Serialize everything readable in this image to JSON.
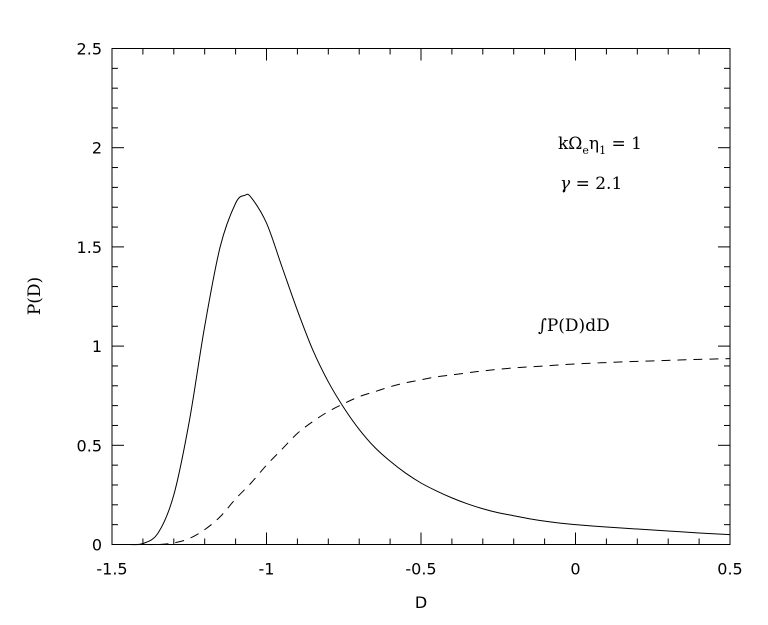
{
  "chart_data": {
    "type": "line",
    "xlabel": "D",
    "ylabel": "P(D)",
    "xlim": [
      -1.5,
      0.5
    ],
    "ylim": [
      0,
      2.5
    ],
    "x_ticks": [
      "-1.5",
      "-1",
      "-0.5",
      "0",
      "0.5"
    ],
    "y_ticks": [
      "0",
      "0.5",
      "1",
      "1.5",
      "2",
      "2.5"
    ],
    "grid": false,
    "annotations": {
      "param1": {
        "main": "kΩ",
        "sub_e": "e",
        "eta": "η",
        "sub_1": "1",
        "rest": " = 1"
      },
      "param2": {
        "gamma": "γ",
        "rest": " = 2.1"
      },
      "dashed_label": {
        "integral": "∫",
        "text": "P(D)dD"
      }
    },
    "series": [
      {
        "style": "solid",
        "x": [
          -1.45,
          -1.4,
          -1.35,
          -1.3,
          -1.25,
          -1.2,
          -1.15,
          -1.1,
          -1.07,
          -1.05,
          -1.0,
          -0.95,
          -0.9,
          -0.85,
          -0.8,
          -0.75,
          -0.7,
          -0.65,
          -0.6,
          -0.55,
          -0.5,
          -0.45,
          -0.4,
          -0.35,
          -0.3,
          -0.25,
          -0.2,
          -0.15,
          -0.1,
          -0.05,
          0.0,
          0.1,
          0.2,
          0.3,
          0.4,
          0.5
        ],
        "y": [
          0.0,
          0.005,
          0.06,
          0.25,
          0.62,
          1.1,
          1.5,
          1.72,
          1.76,
          1.75,
          1.62,
          1.4,
          1.18,
          0.98,
          0.82,
          0.69,
          0.58,
          0.49,
          0.42,
          0.36,
          0.31,
          0.27,
          0.235,
          0.205,
          0.18,
          0.16,
          0.145,
          0.13,
          0.118,
          0.108,
          0.1,
          0.088,
          0.078,
          0.068,
          0.058,
          0.05
        ]
      },
      {
        "style": "dashed",
        "x": [
          -1.45,
          -1.4,
          -1.35,
          -1.3,
          -1.25,
          -1.2,
          -1.15,
          -1.1,
          -1.05,
          -1.0,
          -0.95,
          -0.9,
          -0.85,
          -0.8,
          -0.75,
          -0.7,
          -0.65,
          -0.6,
          -0.55,
          -0.5,
          -0.45,
          -0.4,
          -0.35,
          -0.3,
          -0.2,
          -0.1,
          0.0,
          0.1,
          0.2,
          0.3,
          0.4,
          0.5
        ],
        "y": [
          0.0,
          0.0,
          0.0,
          0.008,
          0.03,
          0.075,
          0.14,
          0.23,
          0.31,
          0.4,
          0.48,
          0.56,
          0.62,
          0.67,
          0.71,
          0.745,
          0.77,
          0.795,
          0.815,
          0.83,
          0.845,
          0.855,
          0.865,
          0.875,
          0.89,
          0.9,
          0.91,
          0.917,
          0.923,
          0.928,
          0.933,
          0.937
        ]
      }
    ]
  }
}
